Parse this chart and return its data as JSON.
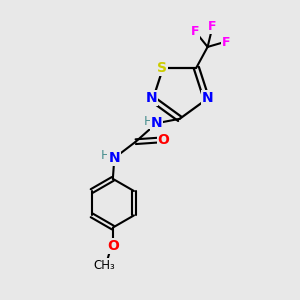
{
  "bg_color": "#e8e8e8",
  "bond_color": "#000000",
  "atom_colors": {
    "N": "#0000ff",
    "O": "#ff0000",
    "S": "#cccc00",
    "F": "#ff00ff",
    "H": "#4a9090",
    "C": "#000000"
  },
  "fig_size": [
    3.0,
    3.0
  ],
  "dpi": 100
}
